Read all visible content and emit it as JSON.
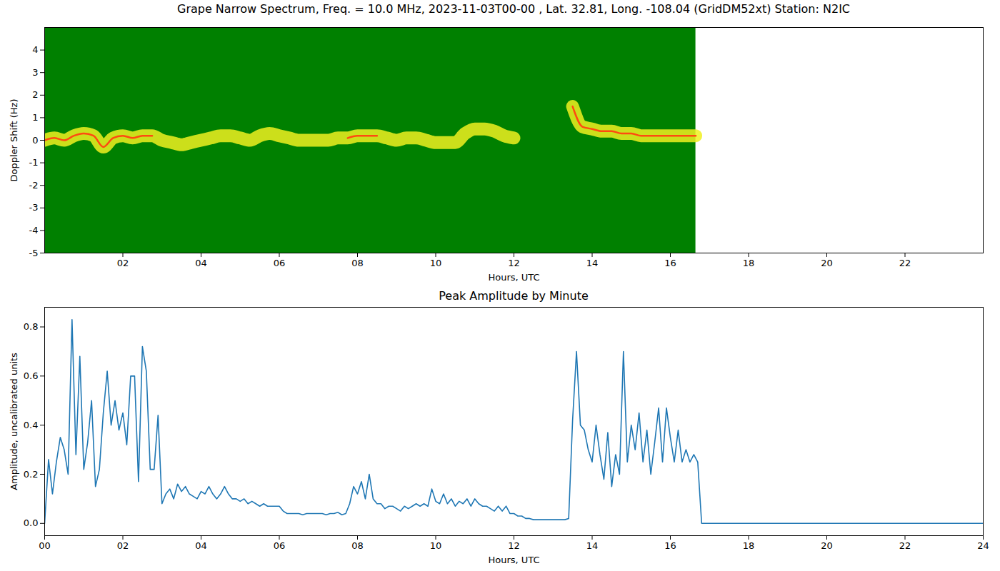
{
  "chart_data": [
    {
      "type": "spectrogram",
      "title": "Grape Narrow Spectrum, Freq. = 10.0 MHz, 2023-11-03T00-00 , Lat.  32.81, Long. -108.04 (GridDM52xt) Station: N2IC",
      "x_label": "Hours, UTC",
      "y_label": "Doppler Shift (Hz)",
      "xlim": [
        0,
        24
      ],
      "xticks": [
        {
          "value": 2,
          "label": "02"
        },
        {
          "value": 4,
          "label": "04"
        },
        {
          "value": 6,
          "label": "06"
        },
        {
          "value": 8,
          "label": "08"
        },
        10,
        12,
        14,
        16,
        18,
        20,
        22
      ],
      "ylim": [
        -5,
        5
      ],
      "yticks": [
        -5,
        -4,
        -3,
        -2,
        -1,
        0,
        1,
        2,
        3,
        4
      ],
      "x_span": [
        0,
        16.65
      ],
      "color": "#008000",
      "x": [
        0,
        0.25,
        0.5,
        0.75,
        1,
        1.25,
        1.5,
        1.75,
        2,
        2.25,
        2.5,
        2.75,
        3,
        3.25,
        3.5,
        3.75,
        4,
        4.25,
        4.5,
        4.75,
        5,
        5.25,
        5.5,
        5.75,
        6,
        6.25,
        6.5,
        6.75,
        7,
        7.25,
        7.5,
        7.75,
        8,
        8.25,
        8.5,
        8.75,
        9,
        9.25,
        9.5,
        9.75,
        10,
        10.25,
        10.5,
        10.75,
        11,
        11.25,
        11.5,
        11.75,
        12,
        12.25,
        12.5,
        12.75,
        13,
        13.25,
        13.5,
        13.75,
        14,
        14.25,
        14.5,
        14.75,
        15,
        15.25,
        15.5,
        15.75,
        16,
        16.25,
        16.5,
        16.65
      ],
      "series": [
        {
          "color": "#f0f020",
          "values": [
            0.0,
            0.1,
            0.0,
            0.2,
            0.3,
            0.2,
            -0.3,
            0.1,
            0.2,
            0.1,
            0.2,
            0.2,
            0.0,
            -0.1,
            -0.2,
            -0.1,
            0.0,
            0.1,
            0.2,
            0.2,
            0.1,
            0.0,
            0.2,
            0.3,
            0.2,
            0.1,
            0.0,
            0.0,
            0.0,
            0.0,
            0.1,
            0.1,
            0.2,
            0.2,
            0.2,
            0.1,
            0.0,
            0.1,
            0.1,
            0.0,
            -0.1,
            -0.1,
            -0.1,
            0.3,
            0.5,
            0.5,
            0.4,
            0.2,
            0.1,
            null,
            null,
            null,
            null,
            null,
            1.5,
            0.6,
            0.5,
            0.4,
            0.4,
            0.3,
            0.3,
            0.2,
            0.2,
            0.2,
            0.2,
            0.2,
            0.2,
            0.2
          ]
        },
        {
          "color": "#ff4a10",
          "values": [
            0.0,
            0.1,
            0.0,
            0.2,
            0.3,
            0.2,
            -0.3,
            0.1,
            0.2,
            0.1,
            0.2,
            0.2,
            null,
            null,
            null,
            null,
            null,
            null,
            null,
            null,
            null,
            null,
            null,
            null,
            null,
            null,
            null,
            null,
            null,
            null,
            null,
            0.1,
            0.2,
            0.2,
            0.2,
            null,
            null,
            null,
            null,
            null,
            null,
            null,
            null,
            null,
            null,
            null,
            null,
            null,
            null,
            null,
            null,
            null,
            null,
            null,
            1.5,
            0.6,
            0.5,
            0.4,
            0.4,
            0.3,
            0.3,
            0.2,
            0.2,
            0.2,
            0.2,
            0.2,
            0.2,
            0.2
          ]
        }
      ]
    },
    {
      "type": "line",
      "title": "Peak Amplitude by Minute",
      "x_label": "Hours, UTC",
      "y_label": "Amplitude, uncalibrated units",
      "xlim": [
        0,
        24
      ],
      "xticks": [
        {
          "value": 0,
          "label": "00"
        },
        {
          "value": 2,
          "label": "02"
        },
        {
          "value": 4,
          "label": "04"
        },
        {
          "value": 6,
          "label": "06"
        },
        {
          "value": 8,
          "label": "08"
        },
        10,
        12,
        14,
        16,
        18,
        20,
        22,
        24
      ],
      "ylim": [
        -0.05,
        0.88
      ],
      "yticks": [
        {
          "value": 0,
          "label": "0.0"
        },
        0.2,
        0.4,
        0.6,
        0.8
      ],
      "x": [
        0,
        0.1,
        0.2,
        0.3,
        0.4,
        0.5,
        0.6,
        0.7,
        0.8,
        0.9,
        1,
        1.1,
        1.2,
        1.3,
        1.4,
        1.5,
        1.6,
        1.7,
        1.8,
        1.9,
        2,
        2.1,
        2.2,
        2.3,
        2.4,
        2.5,
        2.6,
        2.7,
        2.8,
        2.9,
        3,
        3.1,
        3.2,
        3.3,
        3.4,
        3.5,
        3.6,
        3.7,
        3.8,
        3.9,
        4,
        4.1,
        4.2,
        4.3,
        4.4,
        4.5,
        4.6,
        4.7,
        4.8,
        4.9,
        5,
        5.1,
        5.2,
        5.3,
        5.4,
        5.5,
        5.6,
        5.7,
        5.8,
        5.9,
        6,
        6.1,
        6.2,
        6.3,
        6.4,
        6.5,
        6.6,
        6.7,
        6.8,
        6.9,
        7,
        7.1,
        7.2,
        7.3,
        7.4,
        7.5,
        7.6,
        7.7,
        7.8,
        7.9,
        8,
        8.1,
        8.2,
        8.3,
        8.4,
        8.5,
        8.6,
        8.7,
        8.8,
        8.9,
        9,
        9.1,
        9.2,
        9.3,
        9.4,
        9.5,
        9.6,
        9.7,
        9.8,
        9.9,
        10,
        10.1,
        10.2,
        10.3,
        10.4,
        10.5,
        10.6,
        10.7,
        10.8,
        10.9,
        11,
        11.1,
        11.2,
        11.3,
        11.4,
        11.5,
        11.6,
        11.7,
        11.8,
        11.9,
        12,
        12.1,
        12.2,
        12.3,
        12.4,
        12.5,
        12.6,
        12.7,
        12.8,
        12.9,
        13,
        13.1,
        13.2,
        13.3,
        13.4,
        13.5,
        13.6,
        13.7,
        13.8,
        13.9,
        14,
        14.1,
        14.2,
        14.3,
        14.4,
        14.5,
        14.6,
        14.7,
        14.8,
        14.9,
        15,
        15.1,
        15.2,
        15.3,
        15.4,
        15.5,
        15.6,
        15.7,
        15.8,
        15.9,
        16,
        16.1,
        16.2,
        16.3,
        16.4,
        16.5,
        16.6,
        16.7,
        16.8,
        24
      ],
      "series": [
        {
          "color": "#1f77b4",
          "values": [
            0.0,
            0.26,
            0.12,
            0.25,
            0.35,
            0.3,
            0.2,
            0.83,
            0.28,
            0.68,
            0.22,
            0.33,
            0.5,
            0.15,
            0.22,
            0.45,
            0.62,
            0.4,
            0.5,
            0.38,
            0.45,
            0.32,
            0.6,
            0.6,
            0.17,
            0.72,
            0.62,
            0.22,
            0.22,
            0.44,
            0.08,
            0.12,
            0.14,
            0.1,
            0.16,
            0.13,
            0.15,
            0.12,
            0.11,
            0.1,
            0.13,
            0.12,
            0.15,
            0.12,
            0.1,
            0.12,
            0.15,
            0.12,
            0.1,
            0.1,
            0.09,
            0.1,
            0.08,
            0.09,
            0.08,
            0.07,
            0.08,
            0.07,
            0.07,
            0.07,
            0.07,
            0.05,
            0.04,
            0.04,
            0.04,
            0.04,
            0.035,
            0.04,
            0.04,
            0.04,
            0.04,
            0.04,
            0.035,
            0.04,
            0.04,
            0.045,
            0.035,
            0.04,
            0.08,
            0.15,
            0.12,
            0.17,
            0.1,
            0.2,
            0.1,
            0.08,
            0.08,
            0.06,
            0.07,
            0.07,
            0.06,
            0.05,
            0.07,
            0.06,
            0.07,
            0.08,
            0.07,
            0.08,
            0.07,
            0.14,
            0.09,
            0.08,
            0.12,
            0.08,
            0.1,
            0.07,
            0.09,
            0.08,
            0.1,
            0.07,
            0.1,
            0.08,
            0.07,
            0.07,
            0.06,
            0.05,
            0.07,
            0.05,
            0.07,
            0.04,
            0.04,
            0.03,
            0.03,
            0.02,
            0.02,
            0.015,
            0.015,
            0.015,
            0.015,
            0.015,
            0.015,
            0.015,
            0.015,
            0.015,
            0.02,
            0.42,
            0.7,
            0.4,
            0.38,
            0.3,
            0.25,
            0.4,
            0.28,
            0.18,
            0.37,
            0.15,
            0.28,
            0.2,
            0.7,
            0.25,
            0.4,
            0.3,
            0.45,
            0.25,
            0.38,
            0.2,
            0.33,
            0.47,
            0.25,
            0.47,
            0.35,
            0.25,
            0.38,
            0.25,
            0.3,
            0.25,
            0.28,
            0.25,
            0.0,
            0.0
          ]
        }
      ]
    }
  ]
}
